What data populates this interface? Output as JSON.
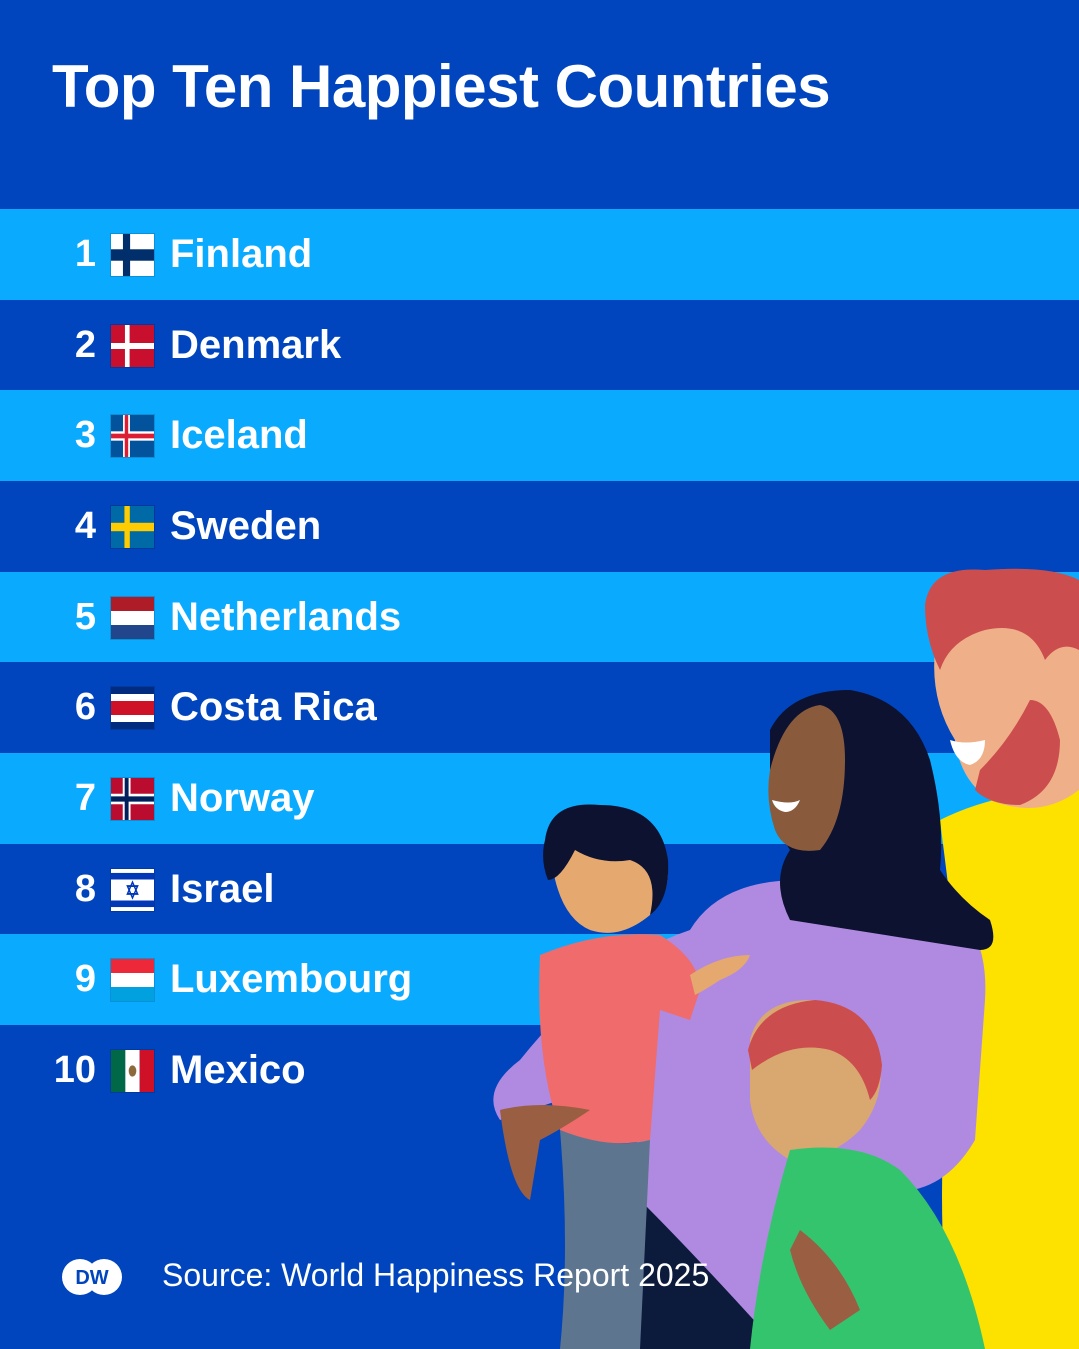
{
  "title": "Top Ten Happiest Countries",
  "colors": {
    "background": "#0045bd",
    "row_light": "#0aabff",
    "row_dark": "#0045bd",
    "text": "#ffffff"
  },
  "rows": [
    {
      "rank": "1",
      "country": "Finland",
      "flag": "finland-flag-icon"
    },
    {
      "rank": "2",
      "country": "Denmark",
      "flag": "denmark-flag-icon"
    },
    {
      "rank": "3",
      "country": "Iceland",
      "flag": "iceland-flag-icon"
    },
    {
      "rank": "4",
      "country": "Sweden",
      "flag": "sweden-flag-icon"
    },
    {
      "rank": "5",
      "country": "Netherlands",
      "flag": "netherlands-flag-icon"
    },
    {
      "rank": "6",
      "country": "Costa Rica",
      "flag": "costa-rica-flag-icon"
    },
    {
      "rank": "7",
      "country": "Norway",
      "flag": "norway-flag-icon"
    },
    {
      "rank": "8",
      "country": "Israel",
      "flag": "israel-flag-icon"
    },
    {
      "rank": "9",
      "country": "Luxembourg",
      "flag": "luxembourg-flag-icon"
    },
    {
      "rank": "10",
      "country": "Mexico",
      "flag": "mexico-flag-icon"
    }
  ],
  "footer": {
    "logo": "DW",
    "source": "Source: World Happiness Report 2025"
  }
}
